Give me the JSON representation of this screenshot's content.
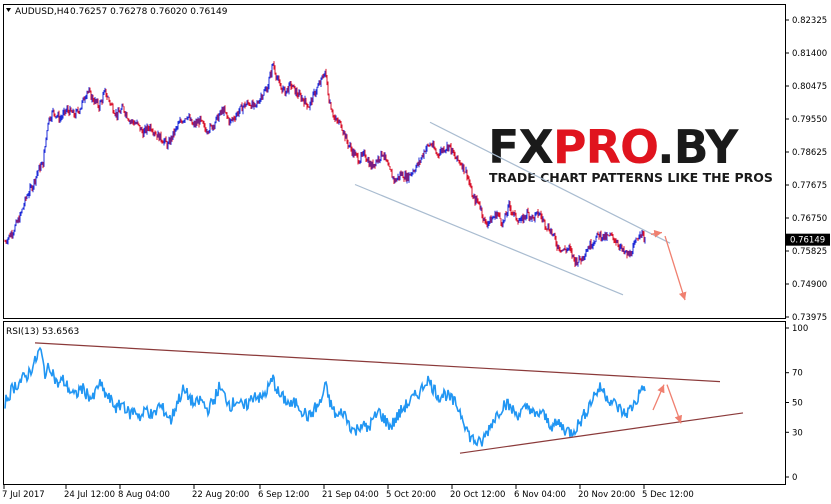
{
  "header": {
    "symbol_label": "AUDUSD,H4",
    "ohlc": "0.76257 0.76278 0.76020 0.76149"
  },
  "rsi_header": {
    "label": "RSI(13) 53.6563"
  },
  "watermark": {
    "logo": "FXPRO.BY",
    "tagline": "TRADE CHART PATTERNS LIKE THE PROS"
  },
  "colors": {
    "bull": "#1e2bd8",
    "bear": "#d8102a",
    "channel": "#a9bcd0",
    "rsi_line": "#2196f3",
    "triangle": "#8b3a3a",
    "arrow": "#f08070",
    "price_tag_bg": "#000000",
    "logo_dark": "#1a1a1a",
    "logo_red": "#e0141e"
  },
  "chart_data": [
    {
      "type": "candlestick",
      "symbol": "AUDUSD",
      "timeframe": "H4",
      "last_price": "0.76149",
      "y_ticks": [
        "0.82325",
        "0.81400",
        "0.80475",
        "0.79550",
        "0.78625",
        "0.77675",
        "0.76750",
        "0.75825",
        "0.74900",
        "0.73975"
      ],
      "ylim": [
        0.73975,
        0.82325
      ],
      "x_ticks": [
        "7 Jul 2017",
        "24 Jul 12:00",
        "8 Aug 04:00",
        "22 Aug 20:00",
        "6 Sep 12:00",
        "21 Sep 04:00",
        "5 Oct 20:00",
        "20 Oct 12:00",
        "6 Nov 04:00",
        "20 Nov 20:00",
        "5 Dec 12:00"
      ],
      "x_range": [
        0,
        640
      ],
      "price_path": [
        [
          0,
          0.761
        ],
        [
          8,
          0.764
        ],
        [
          15,
          0.768
        ],
        [
          22,
          0.774
        ],
        [
          28,
          0.777
        ],
        [
          33,
          0.781
        ],
        [
          38,
          0.783
        ],
        [
          43,
          0.795
        ],
        [
          48,
          0.7975
        ],
        [
          55,
          0.7955
        ],
        [
          62,
          0.798
        ],
        [
          70,
          0.7965
        ],
        [
          76,
          0.799
        ],
        [
          82,
          0.8035
        ],
        [
          88,
          0.801
        ],
        [
          94,
          0.799
        ],
        [
          100,
          0.803
        ],
        [
          106,
          0.7995
        ],
        [
          112,
          0.7965
        ],
        [
          118,
          0.7985
        ],
        [
          125,
          0.795
        ],
        [
          132,
          0.794
        ],
        [
          138,
          0.7915
        ],
        [
          145,
          0.7935
        ],
        [
          152,
          0.791
        ],
        [
          158,
          0.7895
        ],
        [
          163,
          0.788
        ],
        [
          168,
          0.791
        ],
        [
          175,
          0.7945
        ],
        [
          182,
          0.7965
        ],
        [
          188,
          0.7935
        ],
        [
          195,
          0.795
        ],
        [
          200,
          0.7925
        ],
        [
          206,
          0.793
        ],
        [
          212,
          0.7955
        ],
        [
          218,
          0.798
        ],
        [
          225,
          0.7945
        ],
        [
          232,
          0.797
        ],
        [
          238,
          0.799
        ],
        [
          244,
          0.8
        ],
        [
          250,
          0.7985
        ],
        [
          256,
          0.802
        ],
        [
          262,
          0.804
        ],
        [
          268,
          0.811
        ],
        [
          274,
          0.805
        ],
        [
          280,
          0.803
        ],
        [
          286,
          0.805
        ],
        [
          292,
          0.8025
        ],
        [
          298,
          0.801
        ],
        [
          304,
          0.799
        ],
        [
          310,
          0.803
        ],
        [
          316,
          0.806
        ],
        [
          320,
          0.809
        ],
        [
          324,
          0.801
        ],
        [
          330,
          0.795
        ],
        [
          336,
          0.794
        ],
        [
          342,
          0.789
        ],
        [
          348,
          0.786
        ],
        [
          354,
          0.784
        ],
        [
          360,
          0.7855
        ],
        [
          366,
          0.782
        ],
        [
          372,
          0.784
        ],
        [
          378,
          0.786
        ],
        [
          384,
          0.781
        ],
        [
          390,
          0.778
        ],
        [
          396,
          0.78
        ],
        [
          402,
          0.779
        ],
        [
          408,
          0.781
        ],
        [
          414,
          0.783
        ],
        [
          420,
          0.787
        ],
        [
          426,
          0.7885
        ],
        [
          432,
          0.7855
        ],
        [
          438,
          0.787
        ],
        [
          444,
          0.788
        ],
        [
          450,
          0.7845
        ],
        [
          456,
          0.783
        ],
        [
          462,
          0.78
        ],
        [
          468,
          0.773
        ],
        [
          474,
          0.772
        ],
        [
          480,
          0.766
        ],
        [
          486,
          0.767
        ],
        [
          492,
          0.769
        ],
        [
          498,
          0.766
        ],
        [
          504,
          0.771
        ],
        [
          510,
          0.768
        ],
        [
          516,
          0.7665
        ],
        [
          522,
          0.769
        ],
        [
          528,
          0.7675
        ],
        [
          534,
          0.769
        ],
        [
          540,
          0.766
        ],
        [
          546,
          0.764
        ],
        [
          552,
          0.76
        ],
        [
          558,
          0.7585
        ],
        [
          564,
          0.759
        ],
        [
          570,
          0.7555
        ],
        [
          576,
          0.756
        ],
        [
          582,
          0.759
        ],
        [
          588,
          0.761
        ],
        [
          594,
          0.763
        ],
        [
          600,
          0.762
        ],
        [
          606,
          0.7625
        ],
        [
          612,
          0.761
        ],
        [
          618,
          0.758
        ],
        [
          624,
          0.757
        ],
        [
          630,
          0.76
        ],
        [
          635,
          0.764
        ],
        [
          640,
          0.7615
        ]
      ],
      "channel_upper": [
        [
          425,
          0.7945
        ],
        [
          665,
          0.7605
        ]
      ],
      "channel_lower": [
        [
          350,
          0.777
        ],
        [
          618,
          0.746
        ]
      ],
      "projection_arrows": [
        {
          "from": [
            646,
            0.763
          ],
          "to": [
            657,
            0.7635
          ]
        },
        {
          "from": [
            660,
            0.7625
          ],
          "to": [
            680,
            0.7445
          ]
        }
      ]
    },
    {
      "type": "line",
      "name": "RSI(13)",
      "value": "53.6563",
      "y_ticks": [
        "100",
        "70",
        "50",
        "30",
        "0"
      ],
      "ylim": [
        0,
        100
      ],
      "x_range": [
        0,
        640
      ],
      "rsi_path": [
        [
          0,
          50
        ],
        [
          8,
          60
        ],
        [
          15,
          64
        ],
        [
          22,
          68
        ],
        [
          30,
          77
        ],
        [
          35,
          86
        ],
        [
          40,
          70
        ],
        [
          46,
          74
        ],
        [
          52,
          62
        ],
        [
          58,
          65
        ],
        [
          64,
          59
        ],
        [
          70,
          54
        ],
        [
          76,
          60
        ],
        [
          82,
          56
        ],
        [
          88,
          52
        ],
        [
          94,
          63
        ],
        [
          100,
          56
        ],
        [
          106,
          51
        ],
        [
          112,
          46
        ],
        [
          118,
          50
        ],
        [
          124,
          42
        ],
        [
          130,
          45
        ],
        [
          136,
          40
        ],
        [
          142,
          46
        ],
        [
          148,
          40
        ],
        [
          154,
          48
        ],
        [
          160,
          44
        ],
        [
          166,
          38
        ],
        [
          172,
          50
        ],
        [
          178,
          58
        ],
        [
          184,
          54
        ],
        [
          190,
          48
        ],
        [
          196,
          52
        ],
        [
          202,
          45
        ],
        [
          208,
          50
        ],
        [
          214,
          60
        ],
        [
          220,
          54
        ],
        [
          226,
          48
        ],
        [
          232,
          52
        ],
        [
          238,
          46
        ],
        [
          244,
          50
        ],
        [
          250,
          56
        ],
        [
          256,
          52
        ],
        [
          262,
          58
        ],
        [
          268,
          66
        ],
        [
          274,
          55
        ],
        [
          280,
          52
        ],
        [
          286,
          48
        ],
        [
          292,
          50
        ],
        [
          298,
          44
        ],
        [
          304,
          40
        ],
        [
          310,
          46
        ],
        [
          316,
          50
        ],
        [
          320,
          62
        ],
        [
          326,
          48
        ],
        [
          332,
          40
        ],
        [
          338,
          44
        ],
        [
          344,
          36
        ],
        [
          350,
          30
        ],
        [
          356,
          36
        ],
        [
          362,
          32
        ],
        [
          368,
          38
        ],
        [
          374,
          44
        ],
        [
          380,
          38
        ],
        [
          386,
          34
        ],
        [
          392,
          40
        ],
        [
          398,
          46
        ],
        [
          404,
          50
        ],
        [
          410,
          54
        ],
        [
          416,
          58
        ],
        [
          422,
          66
        ],
        [
          428,
          60
        ],
        [
          434,
          54
        ],
        [
          440,
          56
        ],
        [
          446,
          52
        ],
        [
          452,
          48
        ],
        [
          458,
          40
        ],
        [
          464,
          28
        ],
        [
          470,
          24
        ],
        [
          476,
          22
        ],
        [
          482,
          30
        ],
        [
          488,
          38
        ],
        [
          494,
          44
        ],
        [
          500,
          50
        ],
        [
          506,
          46
        ],
        [
          512,
          42
        ],
        [
          518,
          44
        ],
        [
          524,
          48
        ],
        [
          530,
          40
        ],
        [
          536,
          44
        ],
        [
          542,
          38
        ],
        [
          548,
          34
        ],
        [
          554,
          36
        ],
        [
          560,
          32
        ],
        [
          566,
          30
        ],
        [
          572,
          34
        ],
        [
          578,
          40
        ],
        [
          584,
          48
        ],
        [
          590,
          56
        ],
        [
          596,
          60
        ],
        [
          602,
          54
        ],
        [
          608,
          50
        ],
        [
          614,
          46
        ],
        [
          620,
          42
        ],
        [
          626,
          46
        ],
        [
          632,
          52
        ],
        [
          638,
          62
        ],
        [
          640,
          54
        ]
      ],
      "triangle_upper": [
        [
          30,
          90
        ],
        [
          715,
          64
        ]
      ],
      "triangle_lower": [
        [
          455,
          16
        ],
        [
          738,
          43
        ]
      ],
      "projection_arrows": [
        {
          "from": [
            648,
            45
          ],
          "to": [
            659,
            62
          ]
        },
        {
          "from": [
            662,
            62
          ],
          "to": [
            676,
            36
          ]
        }
      ]
    }
  ]
}
